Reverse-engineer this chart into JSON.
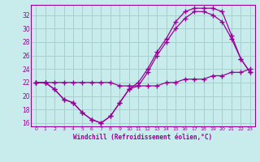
{
  "xlabel": "Windchill (Refroidissement éolien,°C)",
  "bg_color": "#c8ecec",
  "grid_color": "#a8d0d0",
  "line_color": "#990099",
  "xlim": [
    -0.5,
    23.5
  ],
  "ylim": [
    15.5,
    33.5
  ],
  "xticks": [
    0,
    1,
    2,
    3,
    4,
    5,
    6,
    7,
    8,
    9,
    10,
    11,
    12,
    13,
    14,
    15,
    16,
    17,
    18,
    19,
    20,
    21,
    22,
    23
  ],
  "yticks": [
    16,
    18,
    20,
    22,
    24,
    26,
    28,
    30,
    32
  ],
  "series1_x": [
    0,
    1,
    2,
    3,
    4,
    5,
    6,
    7,
    8,
    9,
    10,
    11,
    12,
    13,
    14,
    15,
    16,
    17,
    18,
    19,
    20,
    21,
    22,
    23
  ],
  "series1_y": [
    22,
    22,
    21,
    19.5,
    19,
    17.5,
    16.5,
    16,
    17,
    19,
    21,
    21.5,
    23.5,
    26,
    28,
    30,
    31.5,
    32.5,
    32.5,
    32,
    31,
    28.5,
    25.5,
    23.5
  ],
  "series2_x": [
    0,
    1,
    2,
    3,
    4,
    5,
    6,
    7,
    8,
    9,
    10,
    11,
    12,
    13,
    14,
    15,
    16,
    17,
    18,
    19,
    20,
    21,
    22,
    23
  ],
  "series2_y": [
    22,
    22,
    21,
    19.5,
    19,
    17.5,
    16.5,
    16,
    17,
    19,
    21,
    22,
    24,
    26.5,
    28.5,
    31,
    32.5,
    33,
    33,
    33,
    32.5,
    29,
    25.5,
    23.5
  ],
  "series3_x": [
    0,
    1,
    2,
    3,
    4,
    5,
    6,
    7,
    8,
    9,
    10,
    11,
    12,
    13,
    14,
    15,
    16,
    17,
    18,
    19,
    20,
    21,
    22,
    23
  ],
  "series3_y": [
    22,
    22,
    22,
    22,
    22,
    22,
    22,
    22,
    22,
    21.5,
    21.5,
    21.5,
    21.5,
    21.5,
    22,
    22,
    22.5,
    22.5,
    22.5,
    23,
    23,
    23.5,
    23.5,
    24
  ]
}
